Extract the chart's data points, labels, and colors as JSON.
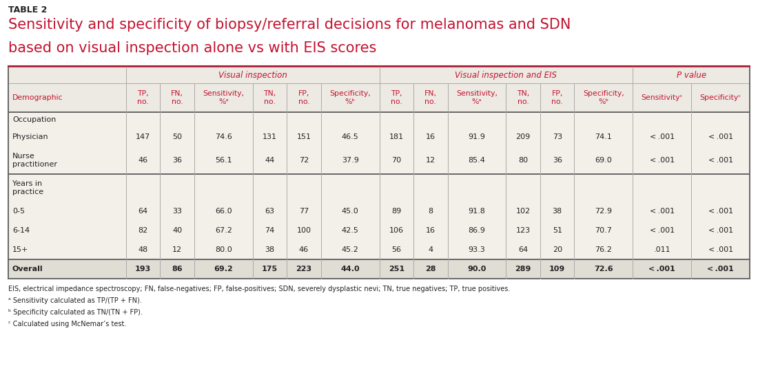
{
  "table_label": "TABLE 2",
  "title_line1": "Sensitivity and specificity of biopsy/referral decisions for melanomas and SDN",
  "title_line2": "based on visual inspection alone vs with EIS scores",
  "header_group1": "Visual inspection",
  "header_group2": "Visual inspection and EIS",
  "header_group3": "P value",
  "col_headers": [
    "Demographic",
    "TP,\nno.",
    "FN,\nno.",
    "Sensitivity,\n%ᵃ",
    "TN,\nno.",
    "FP,\nno.",
    "Specificity,\n%ᵇ",
    "TP,\nno.",
    "FN,\nno.",
    "Sensitivity,\n%ᵃ",
    "TN,\nno.",
    "FP,\nno.",
    "Specificity,\n%ᵇ",
    "Sensitivityᶜ",
    "Specificityᶜ"
  ],
  "rows": [
    [
      "Occupation",
      "",
      "",
      "",
      "",
      "",
      "",
      "",
      "",
      "",
      "",
      "",
      "",
      "",
      ""
    ],
    [
      "Physician",
      "147",
      "50",
      "74.6",
      "131",
      "151",
      "46.5",
      "181",
      "16",
      "91.9",
      "209",
      "73",
      "74.1",
      "< .001",
      "< .001"
    ],
    [
      "Nurse\npractitioner",
      "46",
      "36",
      "56.1",
      "44",
      "72",
      "37.9",
      "70",
      "12",
      "85.4",
      "80",
      "36",
      "69.0",
      "< .001",
      "< .001"
    ],
    [
      "Years in\npractice",
      "",
      "",
      "",
      "",
      "",
      "",
      "",
      "",
      "",
      "",
      "",
      "",
      "",
      ""
    ],
    [
      "0-5",
      "64",
      "33",
      "66.0",
      "63",
      "77",
      "45.0",
      "89",
      "8",
      "91.8",
      "102",
      "38",
      "72.9",
      "< .001",
      "< .001"
    ],
    [
      "6-14",
      "82",
      "40",
      "67.2",
      "74",
      "100",
      "42.5",
      "106",
      "16",
      "86.9",
      "123",
      "51",
      "70.7",
      "< .001",
      "< .001"
    ],
    [
      "15+",
      "48",
      "12",
      "80.0",
      "38",
      "46",
      "45.2",
      "56",
      "4",
      "93.3",
      "64",
      "20",
      "76.2",
      ".011",
      "< .001"
    ],
    [
      "Overall",
      "193",
      "86",
      "69.2",
      "175",
      "223",
      "44.0",
      "251",
      "28",
      "90.0",
      "289",
      "109",
      "72.6",
      "< .001",
      "< .001"
    ]
  ],
  "footnotes": [
    "EIS, electrical impedance spectroscopy; FN, false-negatives; FP, false-positives; SDN, severely dysplastic nevi; TN, true negatives; TP, true positives.",
    "ᵃ Sensitivity calculated as TP/(TP + FN).",
    "ᵇ Specificity calculated as TN/(TN + FP).",
    "ᶜ Calculated using McNemar’s test."
  ],
  "bg_white": "#ffffff",
  "bg_light": "#edeae3",
  "bg_lighter": "#f3f0ea",
  "bg_overall": "#e0ddd5",
  "red": "#c41230",
  "black": "#222222",
  "gray_line": "#aaaaaa",
  "dark_line": "#666666"
}
